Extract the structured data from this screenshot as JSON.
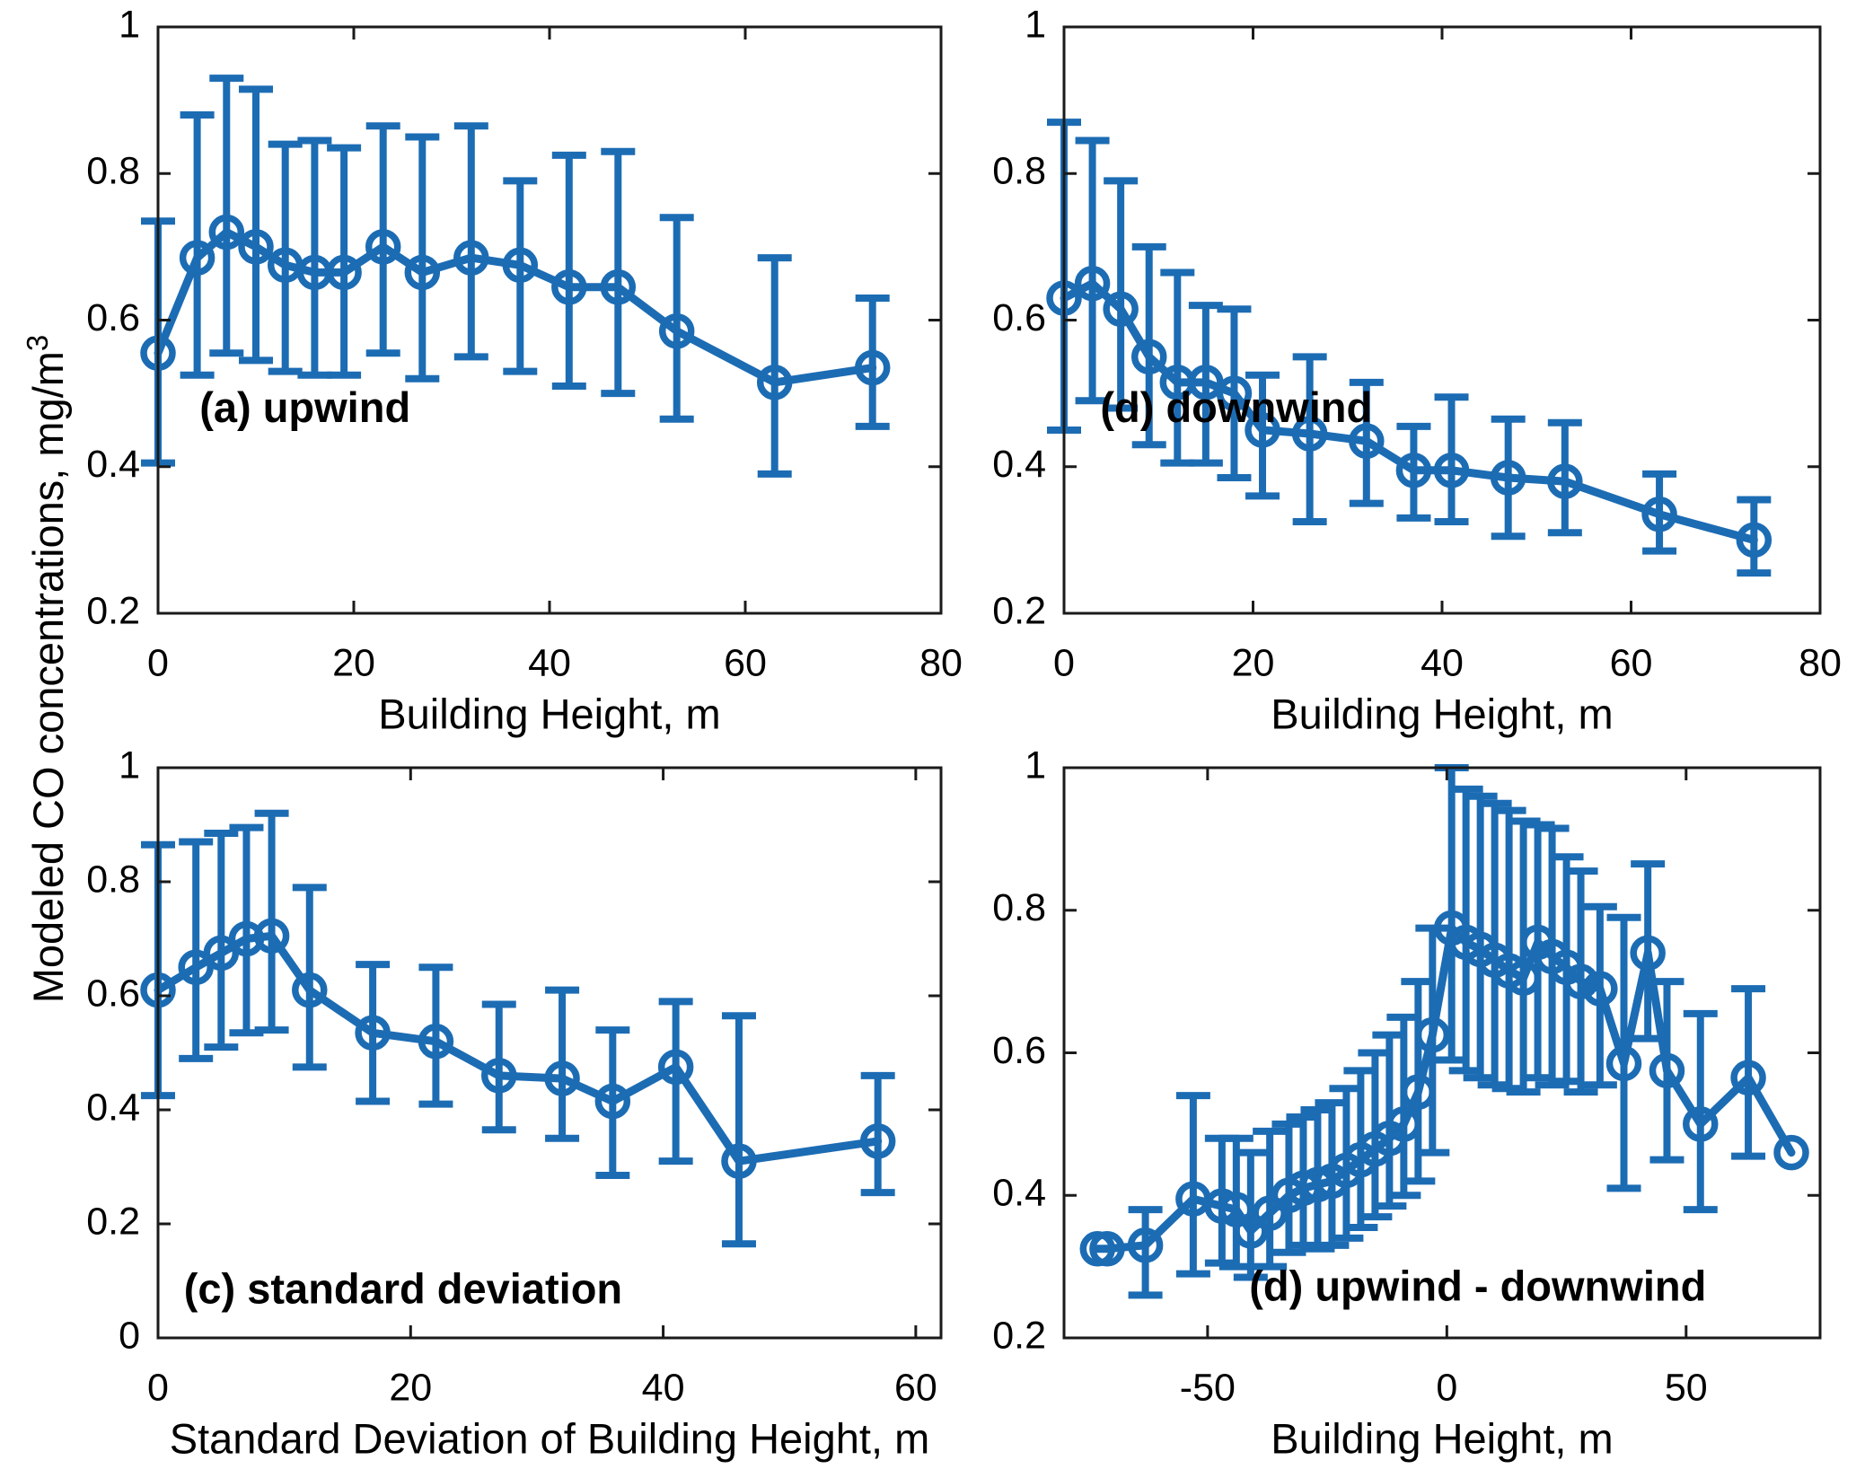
{
  "figure": {
    "shared_ylabel": "Modeled CO concentrations, mg/m",
    "shared_ylabel_sup": "3",
    "accent_color": "#1c6cb4",
    "axis_color": "#1a1a1a",
    "background_color": "#ffffff"
  },
  "chart_data": [
    {
      "type": "line",
      "panel": "a",
      "annotation": "(a) upwind",
      "xlabel": "Building Height, m",
      "xlim": [
        0,
        80
      ],
      "ylim": [
        0.2,
        1
      ],
      "xticks": [
        0,
        20,
        40,
        60,
        80
      ],
      "xtick_labels": [
        "0",
        "20",
        "40",
        "60",
        "80"
      ],
      "yticks": [
        0.2,
        0.4,
        0.6,
        0.8,
        1
      ],
      "ytick_labels": [
        "0.2",
        "0.4",
        "0.6",
        "0.8",
        "1"
      ],
      "grid": false,
      "legend": null,
      "marker": "open-circle",
      "error_bars": true,
      "x": [
        0,
        4,
        7,
        10,
        13,
        16,
        19,
        23,
        27,
        32,
        37,
        42,
        47,
        53,
        63,
        73
      ],
      "y": [
        0.555,
        0.685,
        0.72,
        0.7,
        0.675,
        0.665,
        0.665,
        0.7,
        0.665,
        0.685,
        0.675,
        0.645,
        0.645,
        0.585,
        0.515,
        0.535
      ],
      "err_low": [
        0.405,
        0.525,
        0.555,
        0.545,
        0.53,
        0.525,
        0.525,
        0.555,
        0.52,
        0.55,
        0.53,
        0.51,
        0.5,
        0.465,
        0.39,
        0.455
      ],
      "err_high": [
        0.735,
        0.88,
        0.93,
        0.915,
        0.84,
        0.845,
        0.835,
        0.865,
        0.85,
        0.865,
        0.79,
        0.825,
        0.83,
        0.74,
        0.685,
        0.63
      ]
    },
    {
      "type": "line",
      "panel": "b",
      "annotation": "(d) downwind",
      "xlabel": "Building Height, m",
      "xlim": [
        0,
        80
      ],
      "ylim": [
        0.2,
        1
      ],
      "xticks": [
        0,
        20,
        40,
        60,
        80
      ],
      "xtick_labels": [
        "0",
        "20",
        "40",
        "60",
        "80"
      ],
      "yticks": [
        0.2,
        0.4,
        0.6,
        0.8,
        1
      ],
      "ytick_labels": [
        "0.2",
        "0.4",
        "0.6",
        "0.8",
        "1"
      ],
      "grid": false,
      "legend": null,
      "marker": "open-circle",
      "error_bars": true,
      "x": [
        0,
        3,
        6,
        9,
        12,
        15,
        18,
        21,
        26,
        32,
        37,
        41,
        47,
        53,
        63,
        73
      ],
      "y": [
        0.63,
        0.65,
        0.615,
        0.55,
        0.515,
        0.515,
        0.5,
        0.45,
        0.445,
        0.435,
        0.395,
        0.395,
        0.385,
        0.38,
        0.335,
        0.3
      ],
      "err_low": [
        0.45,
        0.49,
        0.48,
        0.43,
        0.405,
        0.405,
        0.385,
        0.36,
        0.325,
        0.35,
        0.33,
        0.325,
        0.305,
        0.31,
        0.285,
        0.255
      ],
      "err_high": [
        0.87,
        0.845,
        0.79,
        0.7,
        0.665,
        0.62,
        0.615,
        0.525,
        0.55,
        0.515,
        0.455,
        0.495,
        0.465,
        0.46,
        0.39,
        0.355
      ]
    },
    {
      "type": "line",
      "panel": "c",
      "annotation": "(c) standard deviation",
      "xlabel": "Standard Deviation of Building Height, m",
      "xlim": [
        0,
        62
      ],
      "ylim": [
        0,
        1
      ],
      "xticks": [
        0,
        20,
        40,
        60
      ],
      "xtick_labels": [
        "0",
        "20",
        "40",
        "60"
      ],
      "yticks": [
        0,
        0.2,
        0.4,
        0.6,
        0.8,
        1
      ],
      "ytick_labels": [
        "0",
        "0.2",
        "0.4",
        "0.6",
        "0.8",
        "1"
      ],
      "grid": false,
      "legend": null,
      "marker": "open-circle",
      "error_bars": true,
      "x": [
        0,
        3,
        5,
        7,
        9,
        12,
        17,
        22,
        27,
        32,
        36,
        41,
        46,
        57
      ],
      "y": [
        0.61,
        0.65,
        0.675,
        0.7,
        0.705,
        0.61,
        0.535,
        0.52,
        0.46,
        0.455,
        0.415,
        0.475,
        0.31,
        0.345
      ],
      "err_low": [
        0.425,
        0.49,
        0.51,
        0.535,
        0.54,
        0.475,
        0.415,
        0.41,
        0.365,
        0.35,
        0.285,
        0.31,
        0.165,
        0.255
      ],
      "err_high": [
        0.865,
        0.87,
        0.885,
        0.895,
        0.92,
        0.79,
        0.655,
        0.65,
        0.585,
        0.61,
        0.54,
        0.59,
        0.565,
        0.46
      ]
    },
    {
      "type": "line",
      "panel": "d",
      "annotation": "(d) upwind - downwind",
      "xlabel": "Building Height, m",
      "xlim": [
        -80,
        78
      ],
      "ylim": [
        0.2,
        1
      ],
      "xticks": [
        -50,
        0,
        50
      ],
      "xtick_labels": [
        "-50",
        "0",
        "50"
      ],
      "yticks": [
        0.2,
        0.4,
        0.6,
        0.8,
        1
      ],
      "ytick_labels": [
        "0.2",
        "0.4",
        "0.6",
        "0.8",
        "1"
      ],
      "grid": false,
      "legend": null,
      "marker": "open-circle",
      "error_bars": true,
      "x": [
        -73,
        -71,
        -63,
        -53,
        -47,
        -44,
        -41,
        -37,
        -33,
        -30,
        -27,
        -24,
        -21,
        -18,
        -15,
        -12,
        -9,
        -6,
        -3,
        1,
        4,
        7,
        10,
        13,
        16,
        19,
        22,
        25,
        28,
        32,
        37,
        42,
        46,
        53,
        63,
        72
      ],
      "y": [
        0.325,
        0.325,
        0.33,
        0.395,
        0.385,
        0.38,
        0.35,
        0.375,
        0.4,
        0.41,
        0.415,
        0.42,
        0.435,
        0.45,
        0.465,
        0.48,
        0.5,
        0.545,
        0.625,
        0.775,
        0.755,
        0.745,
        0.73,
        0.715,
        0.705,
        0.755,
        0.735,
        0.72,
        0.7,
        0.69,
        0.585,
        0.74,
        0.575,
        0.5,
        0.565,
        0.46
      ],
      "err_low": [
        null,
        null,
        0.26,
        0.29,
        0.305,
        0.3,
        0.285,
        0.3,
        0.32,
        0.33,
        0.325,
        0.33,
        0.34,
        0.355,
        0.37,
        0.385,
        0.4,
        0.42,
        0.46,
        0.59,
        0.575,
        0.565,
        0.555,
        0.55,
        0.545,
        0.565,
        0.555,
        0.56,
        0.545,
        0.555,
        0.41,
        0.62,
        0.45,
        0.38,
        0.455,
        null
      ],
      "err_high": [
        null,
        null,
        0.38,
        0.54,
        0.48,
        0.48,
        0.46,
        0.49,
        0.5,
        0.51,
        0.52,
        0.53,
        0.55,
        0.575,
        0.6,
        0.625,
        0.65,
        0.7,
        0.775,
        1.0,
        0.97,
        0.96,
        0.95,
        0.94,
        0.925,
        0.92,
        0.915,
        0.875,
        0.855,
        0.805,
        0.79,
        0.865,
        0.7,
        0.655,
        0.69,
        null
      ]
    }
  ]
}
